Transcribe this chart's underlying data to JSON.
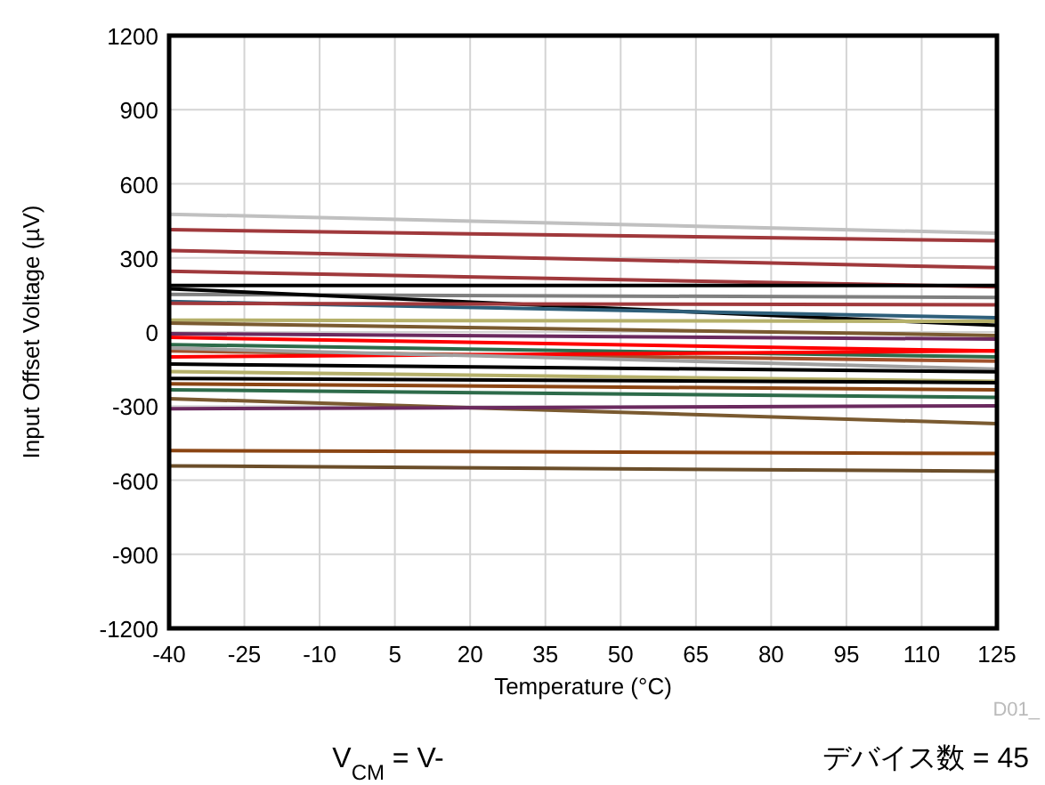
{
  "chart_data": {
    "type": "line",
    "xlabel": "Temperature (°C)",
    "ylabel": "Input Offset Voltage (µV)",
    "xlim": [
      -40,
      125
    ],
    "xticks": [
      -40,
      -25,
      -10,
      5,
      20,
      35,
      50,
      65,
      80,
      95,
      110,
      125
    ],
    "ylim": [
      -1200,
      1200
    ],
    "yticks": [
      -1200,
      -900,
      -600,
      -300,
      0,
      300,
      600,
      900,
      1200
    ],
    "grid": true,
    "line_style": "solid",
    "marker": "none",
    "annotations": [
      "V$_{CM}$ = V-",
      "デバイス数 = 45",
      "D01_"
    ],
    "x": [
      -40,
      125
    ],
    "series": [
      {
        "color": "#c0c0c0",
        "values": [
          477,
          400
        ]
      },
      {
        "color": "#a0393c",
        "values": [
          414,
          369
        ]
      },
      {
        "color": "#a0393c",
        "values": [
          330,
          260
        ]
      },
      {
        "color": "#a0393c",
        "values": [
          246,
          183
        ]
      },
      {
        "color": "#000000",
        "values": [
          188,
          188
        ]
      },
      {
        "color": "#808080",
        "values": [
          152,
          140
        ]
      },
      {
        "color": "#000000",
        "values": [
          175,
          27
        ]
      },
      {
        "color": "#2e5f7a",
        "values": [
          123,
          58
        ]
      },
      {
        "color": "#a0393c",
        "values": [
          116,
          110
        ]
      },
      {
        "color": "#b5b06a",
        "values": [
          48,
          43
        ]
      },
      {
        "color": "#7a5a30",
        "values": [
          36,
          -14
        ]
      },
      {
        "color": "#6b2a5f",
        "values": [
          -7,
          -29
        ]
      },
      {
        "color": "#ff0000",
        "values": [
          -22,
          -77
        ]
      },
      {
        "color": "#2d6b4a",
        "values": [
          -51,
          -101
        ]
      },
      {
        "color": "#a0522d",
        "values": [
          -77,
          -118
        ]
      },
      {
        "color": "#ff0000",
        "values": [
          -101,
          -77
        ]
      },
      {
        "color": "#a0a0a0",
        "values": [
          -65,
          -150
        ]
      },
      {
        "color": "#000000",
        "values": [
          -130,
          -161
        ]
      },
      {
        "color": "#b5b06a",
        "values": [
          -160,
          -200
        ]
      },
      {
        "color": "#000000",
        "values": [
          -188,
          -205
        ]
      },
      {
        "color": "#8b4513",
        "values": [
          -210,
          -234
        ]
      },
      {
        "color": "#2d6b4a",
        "values": [
          -234,
          -265
        ]
      },
      {
        "color": "#7a5a30",
        "values": [
          -270,
          -371
        ]
      },
      {
        "color": "#6b2a5f",
        "values": [
          -311,
          -299
        ]
      },
      {
        "color": "#8b4513",
        "values": [
          -480,
          -492
        ]
      },
      {
        "color": "#6b4e2a",
        "values": [
          -542,
          -564
        ]
      }
    ]
  }
}
